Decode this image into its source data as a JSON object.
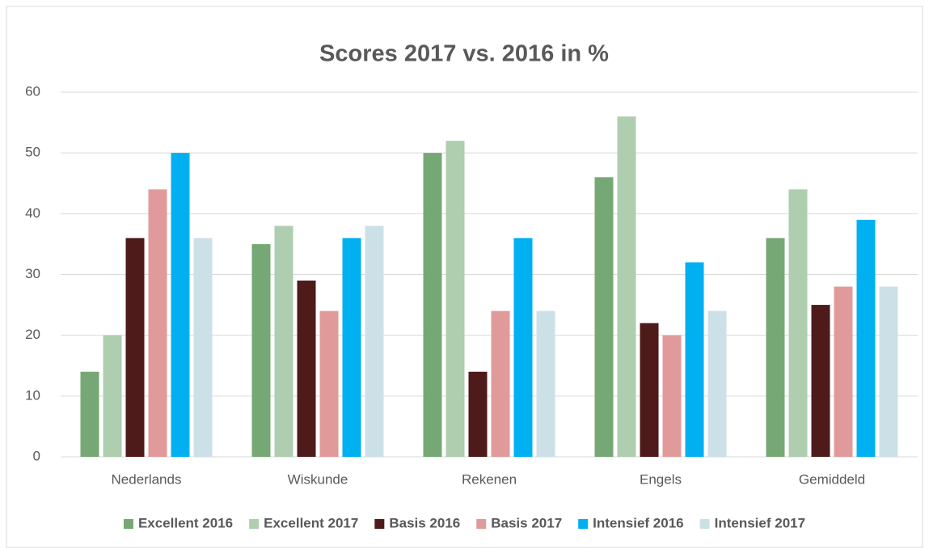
{
  "chart_data": {
    "type": "bar",
    "title": "Scores 2017 vs. 2016 in %",
    "categories": [
      "Nederlands",
      "Wiskunde",
      "Rekenen",
      "Engels",
      "Gemiddeld"
    ],
    "series": [
      {
        "name": "Excellent 2016",
        "color": "#76a876",
        "values": [
          14,
          35,
          50,
          46,
          36
        ]
      },
      {
        "name": "Excellent 2017",
        "color": "#afcdaf",
        "values": [
          20,
          38,
          52,
          56,
          44
        ]
      },
      {
        "name": "Basis 2016",
        "color": "#4e1a1a",
        "values": [
          36,
          29,
          14,
          22,
          25
        ]
      },
      {
        "name": "Basis 2017",
        "color": "#e09a9a",
        "values": [
          44,
          24,
          24,
          20,
          28
        ]
      },
      {
        "name": "Intensief 2016",
        "color": "#00b0f0",
        "values": [
          50,
          36,
          36,
          32,
          39
        ]
      },
      {
        "name": "Intensief 2017",
        "color": "#cce0e8",
        "values": [
          36,
          38,
          24,
          24,
          28
        ]
      }
    ],
    "ylim": [
      0,
      60
    ],
    "yticks": [
      0,
      10,
      20,
      30,
      40,
      50,
      60
    ],
    "grid": true,
    "legend": "bottom"
  }
}
